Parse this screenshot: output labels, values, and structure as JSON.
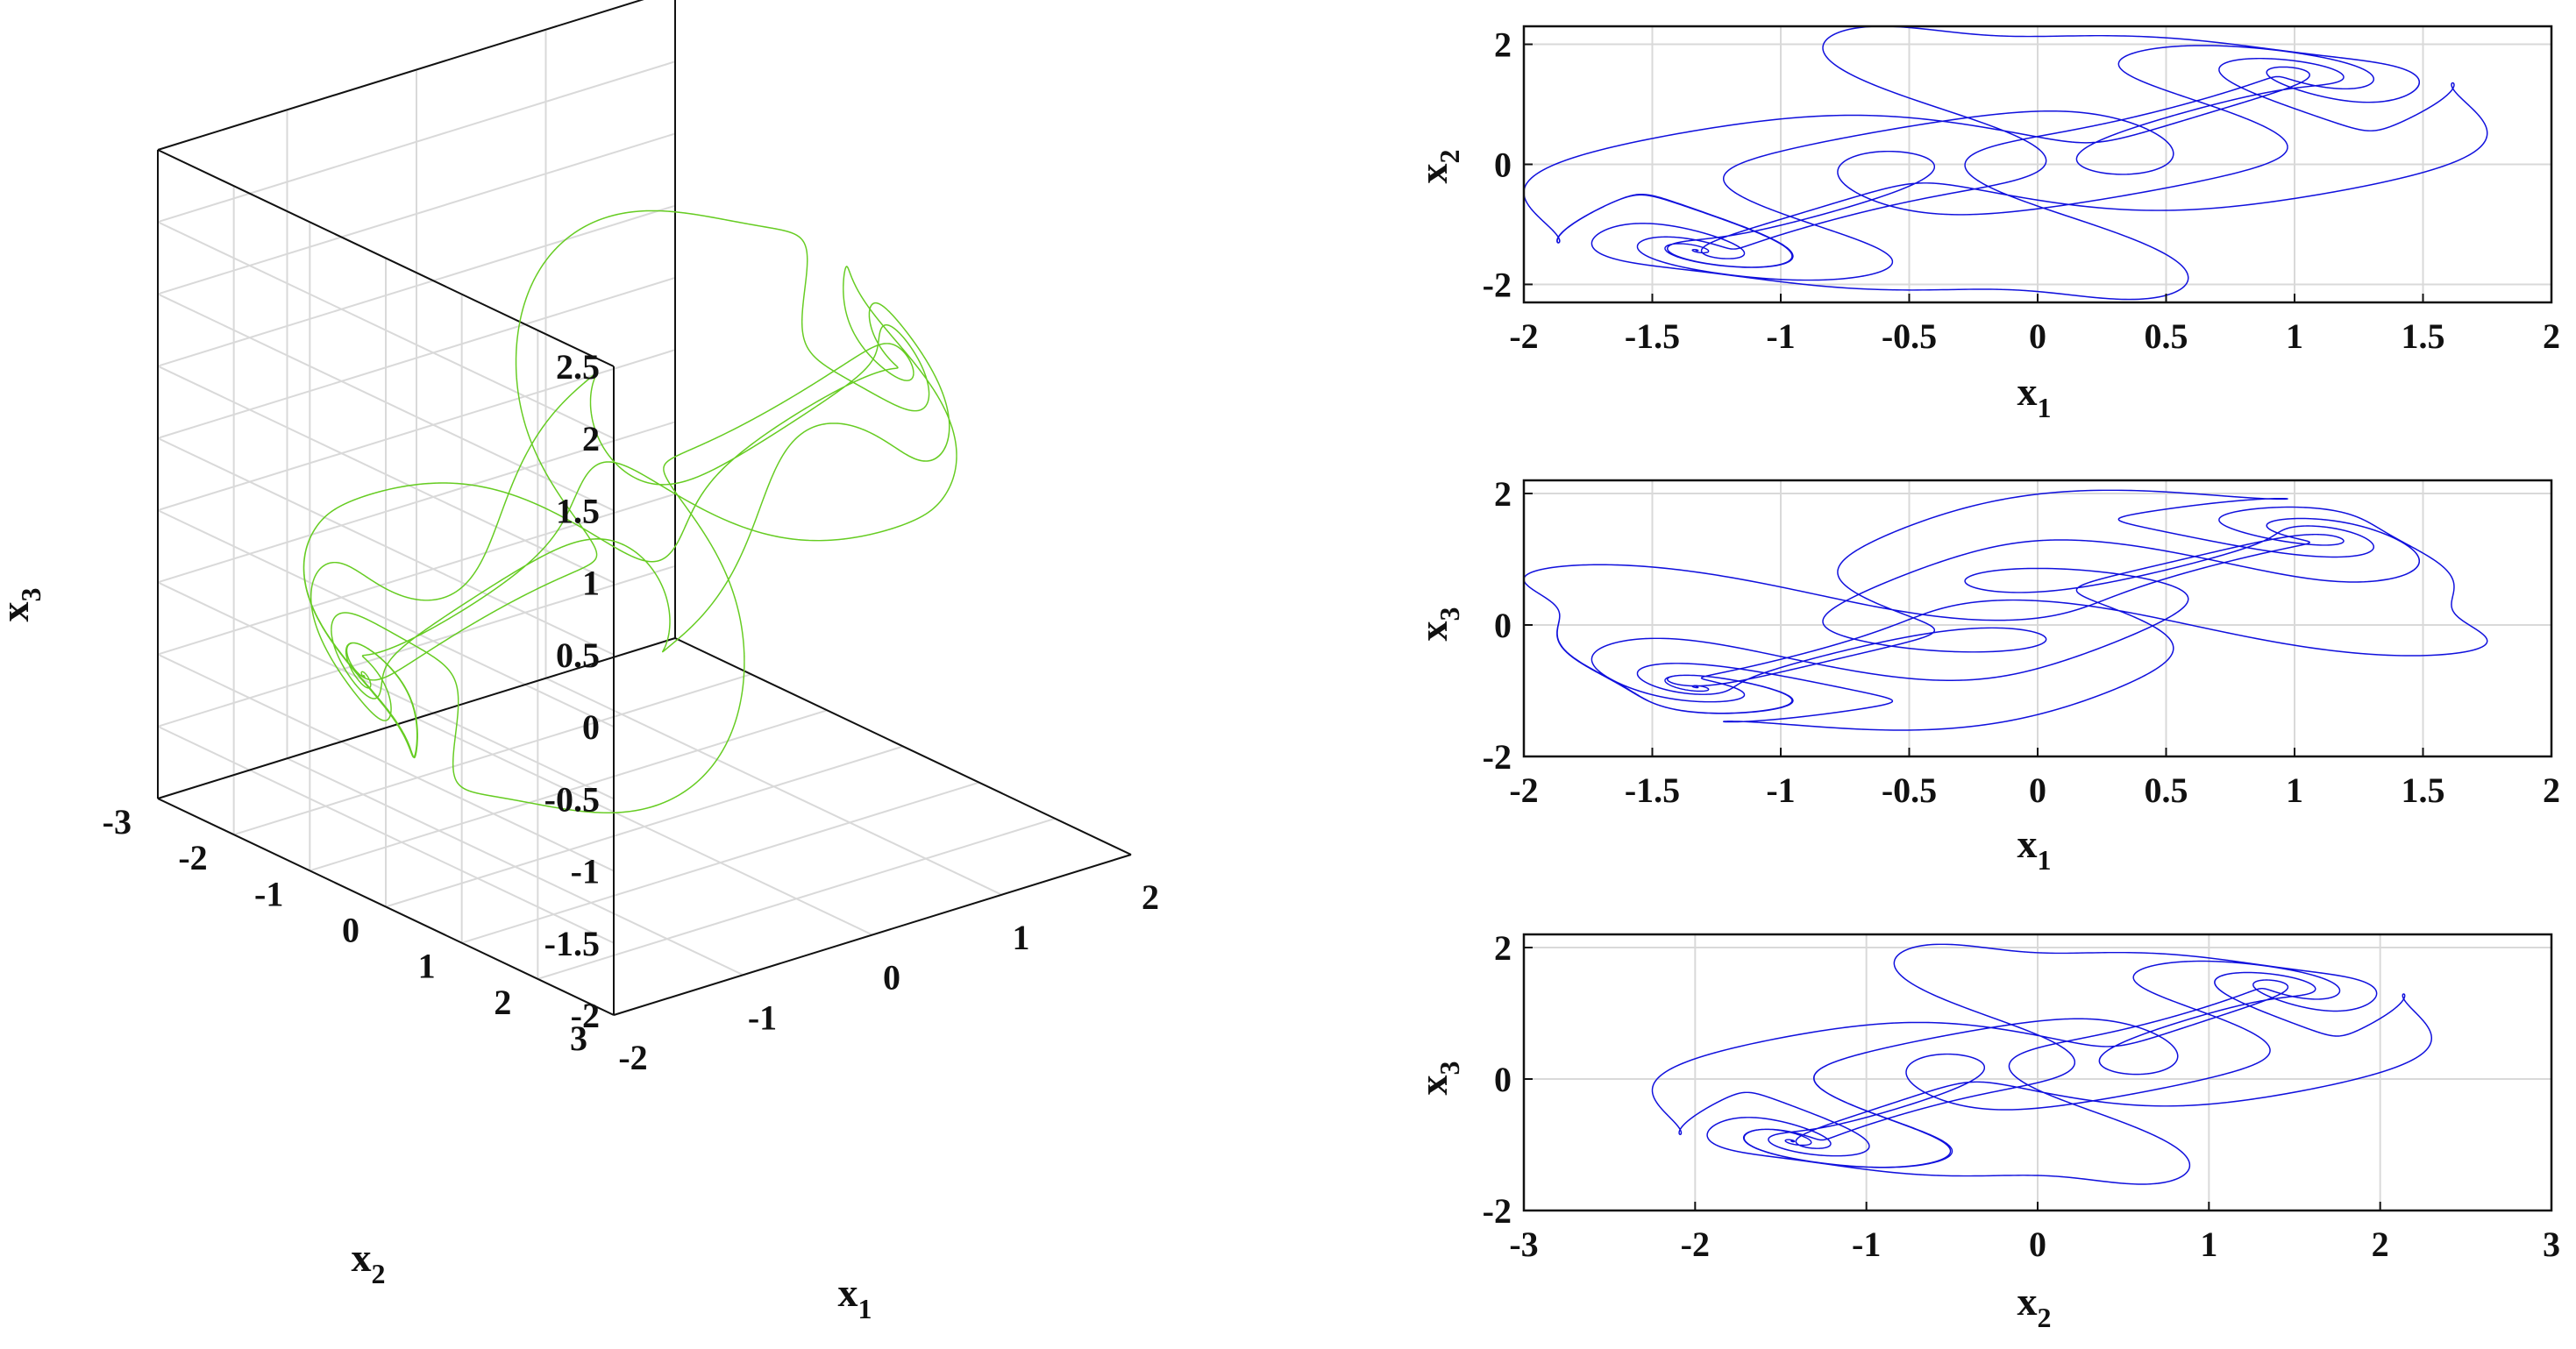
{
  "colors": {
    "attractor_3d": "#66cc22",
    "projections": "#1010dd",
    "axes": "#111111",
    "grid": "#d9d9d9"
  },
  "chart_data": [
    {
      "id": "p3d",
      "type": "line",
      "projection": "3d",
      "title": "",
      "xlabel": "x",
      "xlabel_sub": "1",
      "ylabel": "x",
      "ylabel_sub": "2",
      "zlabel": "x",
      "zlabel_sub": "3",
      "xlim": [
        -2,
        2
      ],
      "ylim": [
        -3,
        3
      ],
      "zlim": [
        -2,
        2.5
      ],
      "xticks": [
        "-2",
        "-1",
        "0",
        "1",
        "2"
      ],
      "yticks": [
        "-3",
        "-2",
        "-1",
        "0",
        "1",
        "2",
        "3"
      ],
      "zticks": [
        "-2",
        "-1.5",
        "-1",
        "-0.5",
        "0",
        "0.5",
        "1",
        "1.5",
        "2",
        "2.5"
      ],
      "grid": true,
      "series": [
        {
          "color": "#66cc22"
        }
      ]
    },
    {
      "id": "p12",
      "type": "line",
      "title": "",
      "xlabel": "x",
      "xlabel_sub": "1",
      "ylabel": "x",
      "ylabel_sub": "2",
      "xlim": [
        -2,
        2
      ],
      "ylim": [
        -2.3,
        2.3
      ],
      "xticks": [
        "-2",
        "-1.5",
        "-1",
        "-0.5",
        "0",
        "0.5",
        "1",
        "1.5",
        "2"
      ],
      "yticks": [
        "-2",
        "0",
        "2"
      ],
      "grid": true,
      "series": [
        {
          "color": "#1010dd"
        }
      ]
    },
    {
      "id": "p13",
      "type": "line",
      "title": "",
      "xlabel": "x",
      "xlabel_sub": "1",
      "ylabel": "x",
      "ylabel_sub": "3",
      "xlim": [
        -2,
        2
      ],
      "ylim": [
        -2,
        2.2
      ],
      "xticks": [
        "-2",
        "-1.5",
        "-1",
        "-0.5",
        "0",
        "0.5",
        "1",
        "1.5",
        "2"
      ],
      "yticks": [
        "-2",
        "0",
        "2"
      ],
      "grid": true,
      "series": [
        {
          "color": "#1010dd"
        }
      ]
    },
    {
      "id": "p23",
      "type": "line",
      "title": "",
      "xlabel": "x",
      "xlabel_sub": "2",
      "ylabel": "x",
      "ylabel_sub": "3",
      "xlim": [
        -3,
        3
      ],
      "ylim": [
        -2,
        2.2
      ],
      "xticks": [
        "-3",
        "-2",
        "-1",
        "0",
        "1",
        "2",
        "3"
      ],
      "yticks": [
        "-2",
        "0",
        "2"
      ],
      "grid": true,
      "series": [
        {
          "color": "#1010dd"
        }
      ]
    }
  ]
}
